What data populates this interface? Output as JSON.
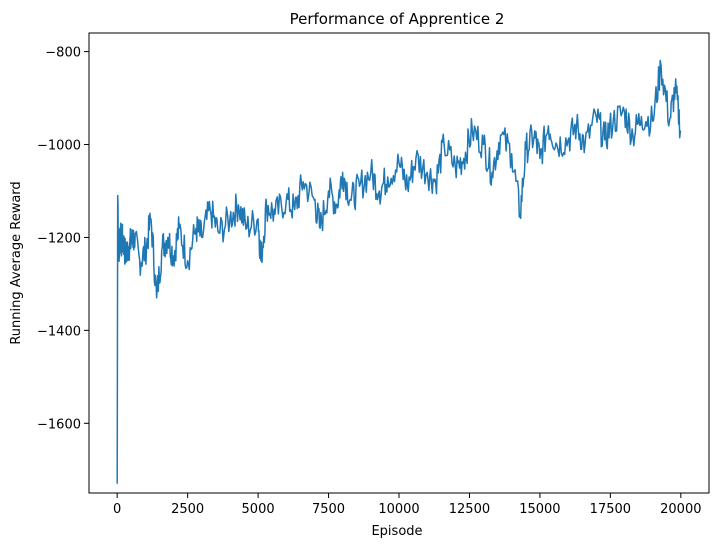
{
  "chart_data": {
    "type": "line",
    "title": "Performance of Apprentice 2",
    "xlabel": "Episode",
    "ylabel": "Running Average Reward",
    "xlim": [
      -1000,
      21000
    ],
    "ylim": [
      -1750,
      -760
    ],
    "xticks": [
      0,
      2500,
      5000,
      7500,
      10000,
      12500,
      15000,
      17500,
      20000
    ],
    "xtick_labels": [
      "0",
      "2500",
      "5000",
      "7500",
      "10000",
      "12500",
      "15000",
      "17500",
      "20000"
    ],
    "yticks": [
      -1600,
      -1400,
      -1200,
      -1000,
      -800
    ],
    "ytick_labels": [
      "−1600",
      "−1400",
      "−1200",
      "−1000",
      "−800"
    ],
    "grid": false,
    "series": [
      {
        "color": "#1f77b4",
        "x": [
          0,
          20,
          60,
          100,
          150,
          200,
          300,
          400,
          500,
          600,
          800,
          1000,
          1200,
          1400,
          1600,
          1800,
          2000,
          2200,
          2500,
          2800,
          3000,
          3300,
          3600,
          4000,
          4300,
          4600,
          5000,
          5100,
          5300,
          5600,
          6000,
          6300,
          6600,
          7000,
          7200,
          7500,
          7800,
          8000,
          8300,
          8600,
          9000,
          9300,
          9600,
          10000,
          10300,
          10600,
          11000,
          11300,
          11600,
          12000,
          12300,
          12600,
          13000,
          13300,
          13600,
          14000,
          14300,
          14500,
          14800,
          15000,
          15300,
          15600,
          16000,
          16300,
          16600,
          17000,
          17300,
          17600,
          18000,
          18300,
          18600,
          19000,
          19300,
          19600,
          19800,
          20000
        ],
        "y": [
          -1730,
          -1110,
          -1250,
          -1180,
          -1220,
          -1200,
          -1240,
          -1220,
          -1210,
          -1200,
          -1250,
          -1230,
          -1160,
          -1330,
          -1220,
          -1200,
          -1240,
          -1180,
          -1250,
          -1180,
          -1200,
          -1140,
          -1190,
          -1160,
          -1130,
          -1180,
          -1160,
          -1250,
          -1130,
          -1150,
          -1120,
          -1140,
          -1080,
          -1120,
          -1180,
          -1100,
          -1130,
          -1060,
          -1120,
          -1090,
          -1060,
          -1100,
          -1070,
          -1040,
          -1090,
          -1030,
          -1060,
          -1080,
          -1000,
          -1050,
          -1030,
          -970,
          -1000,
          -1060,
          -980,
          -1020,
          -1150,
          -1010,
          -980,
          -1030,
          -960,
          -1000,
          -990,
          -960,
          -1000,
          -940,
          -990,
          -950,
          -930,
          -980,
          -940,
          -950,
          -830,
          -950,
          -880,
          -970
        ]
      }
    ]
  }
}
